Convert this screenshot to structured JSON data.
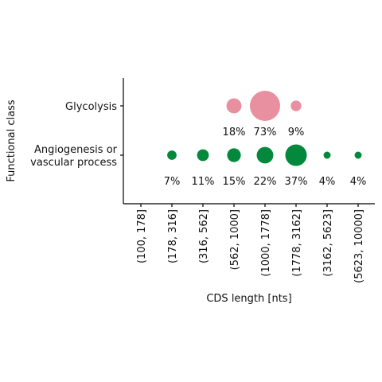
{
  "chart_data": {
    "type": "scatter",
    "xlabel": "CDS length [nts]",
    "ylabel": "Functional class",
    "categories": [
      "(100, 178]",
      "(178, 316]",
      "(316, 562]",
      "(562, 1000]",
      "(1000, 1778]",
      "(1778, 3162]",
      "(3162, 5623]",
      "(5623, 10000]"
    ],
    "classes": [
      {
        "label": "Glycolysis",
        "lines": [
          "Glycolysis"
        ]
      },
      {
        "label": "Angiogenesis or vascular process",
        "lines": [
          "Angiogenesis or",
          "vascular process"
        ]
      }
    ],
    "series": [
      {
        "class_index": 0,
        "color": "#E8909F",
        "points": [
          {
            "category": "(562, 1000]",
            "percent": 18,
            "label": "18%"
          },
          {
            "category": "(1000, 1778]",
            "percent": 73,
            "label": "73%"
          },
          {
            "category": "(1778, 3162]",
            "percent": 9,
            "label": "9%"
          }
        ]
      },
      {
        "class_index": 1,
        "color": "#03883C",
        "points": [
          {
            "category": "(178, 316]",
            "percent": 7,
            "label": "7%"
          },
          {
            "category": "(316, 562]",
            "percent": 11,
            "label": "11%"
          },
          {
            "category": "(562, 1000]",
            "percent": 15,
            "label": "15%"
          },
          {
            "category": "(1000, 1778]",
            "percent": 22,
            "label": "22%"
          },
          {
            "category": "(1778, 3162]",
            "percent": 37,
            "label": "37%"
          },
          {
            "category": "(3162, 5623]",
            "percent": 4,
            "label": "4%"
          },
          {
            "category": "(5623, 10000]",
            "percent": 4,
            "label": "4%"
          }
        ]
      }
    ],
    "size_encoding": "percent",
    "grid": false,
    "legend": "none"
  }
}
